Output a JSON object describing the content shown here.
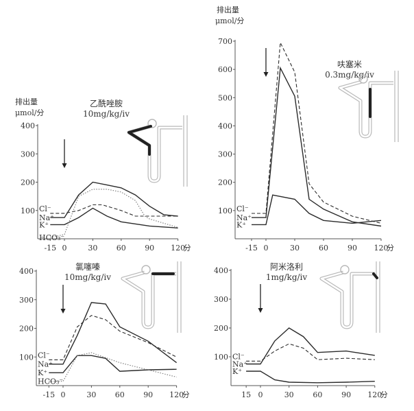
{
  "chart_data": [
    {
      "type": "line",
      "title": "乙酰唑胺",
      "subtitle": "10mg/kg/iv",
      "ylabel": "排出量",
      "yunit": "μmol/分",
      "xunit": "分",
      "ylim": [
        0,
        400
      ],
      "yticks": [
        "100",
        "200",
        "300",
        "400"
      ],
      "xticks": [
        "-15",
        "0",
        "30",
        "60",
        "90",
        "120"
      ],
      "arrow_at": 0,
      "series": [
        {
          "name": "Cl⁻",
          "style": "dashed",
          "x": [
            -15,
            0,
            15,
            30,
            40,
            60,
            75,
            90,
            120
          ],
          "y": [
            90,
            90,
            100,
            120,
            120,
            100,
            80,
            80,
            80
          ]
        },
        {
          "name": "Na⁺",
          "style": "solid",
          "x": [
            -15,
            0,
            15,
            30,
            45,
            60,
            75,
            90,
            105,
            120
          ],
          "y": [
            75,
            75,
            155,
            200,
            190,
            180,
            155,
            115,
            85,
            80
          ]
        },
        {
          "name": "K⁺",
          "style": "solid",
          "x": [
            -15,
            0,
            15,
            30,
            45,
            60,
            90,
            120
          ],
          "y": [
            50,
            50,
            75,
            108,
            80,
            60,
            45,
            38
          ]
        },
        {
          "name": "HCO₃⁻",
          "style": "dotted",
          "x": [
            -15,
            0,
            15,
            30,
            45,
            60,
            75,
            85,
            90,
            120
          ],
          "y": [
            5,
            15,
            150,
            175,
            175,
            165,
            135,
            80,
            70,
            40
          ]
        }
      ]
    },
    {
      "type": "line",
      "title": "呋塞米",
      "subtitle": "0.3mg/kg/iv",
      "ylabel": "排出量",
      "yunit": "μmol/分",
      "xunit": "分",
      "ylim": [
        0,
        700
      ],
      "yticks": [
        "100",
        "200",
        "300",
        "400",
        "500",
        "600",
        "700"
      ],
      "xticks": [
        "-15",
        "0",
        "30",
        "60",
        "90",
        "120"
      ],
      "arrow_at": 0,
      "series": [
        {
          "name": "Cl⁻",
          "style": "dashed",
          "x": [
            -15,
            0,
            15,
            30,
            45,
            60,
            90,
            120
          ],
          "y": [
            90,
            90,
            695,
            590,
            195,
            130,
            80,
            55
          ]
        },
        {
          "name": "Na⁺",
          "style": "solid",
          "x": [
            -15,
            0,
            15,
            30,
            45,
            60,
            90,
            120
          ],
          "y": [
            75,
            75,
            605,
            505,
            140,
            105,
            60,
            45
          ]
        },
        {
          "name": "K⁺",
          "style": "solid",
          "x": [
            -15,
            0,
            7,
            30,
            45,
            60,
            90,
            105,
            120
          ],
          "y": [
            50,
            50,
            155,
            140,
            90,
            65,
            55,
            60,
            65
          ]
        }
      ]
    },
    {
      "type": "line",
      "title": "氯噻嗪",
      "subtitle": "10mg/kg/iv",
      "xunit": "分",
      "ylim": [
        0,
        400
      ],
      "yticks": [
        "100",
        "200",
        "300",
        "400"
      ],
      "xticks": [
        "-15",
        "0",
        "30",
        "60",
        "90",
        "120"
      ],
      "arrow_at": 0,
      "series": [
        {
          "name": "Cl⁻",
          "style": "dashed",
          "x": [
            -15,
            0,
            15,
            30,
            45,
            60,
            90,
            120
          ],
          "y": [
            90,
            90,
            205,
            245,
            230,
            190,
            150,
            100
          ]
        },
        {
          "name": "Na⁺",
          "style": "solid",
          "x": [
            -15,
            0,
            15,
            30,
            45,
            60,
            90,
            120
          ],
          "y": [
            75,
            75,
            175,
            290,
            285,
            205,
            155,
            80
          ]
        },
        {
          "name": "K⁺",
          "style": "solid",
          "x": [
            -15,
            0,
            15,
            30,
            45,
            60,
            90,
            120
          ],
          "y": [
            45,
            45,
            105,
            105,
            95,
            50,
            55,
            57
          ]
        },
        {
          "name": "HCO₃⁻",
          "style": "dotted",
          "x": [
            -15,
            0,
            15,
            30,
            60,
            120
          ],
          "y": [
            15,
            15,
            105,
            115,
            80,
            30
          ]
        }
      ]
    },
    {
      "type": "line",
      "title": "阿米洛利",
      "subtitle": "1mg/kg/iv",
      "xunit": "分",
      "ylim": [
        0,
        400
      ],
      "yticks": [
        "100",
        "200",
        "300",
        "400"
      ],
      "xticks": [
        "15",
        "0",
        "30",
        "60",
        "90",
        "120"
      ],
      "arrow_at": 0,
      "series": [
        {
          "name": "Cl⁻",
          "style": "dashed",
          "x": [
            -15,
            0,
            15,
            30,
            45,
            60,
            90,
            120
          ],
          "y": [
            85,
            85,
            120,
            145,
            130,
            90,
            95,
            90
          ]
        },
        {
          "name": "Na⁺",
          "style": "solid",
          "x": [
            -15,
            0,
            15,
            30,
            45,
            60,
            90,
            120
          ],
          "y": [
            75,
            75,
            155,
            200,
            170,
            115,
            120,
            105
          ]
        },
        {
          "name": "K⁺",
          "style": "solid",
          "x": [
            -15,
            0,
            15,
            30,
            60,
            90,
            120
          ],
          "y": [
            50,
            50,
            20,
            12,
            10,
            12,
            15
          ]
        }
      ]
    }
  ],
  "colors": {
    "line": "#2a2a2a",
    "nephron": "#b8b8b8",
    "highlight": "#222222"
  }
}
